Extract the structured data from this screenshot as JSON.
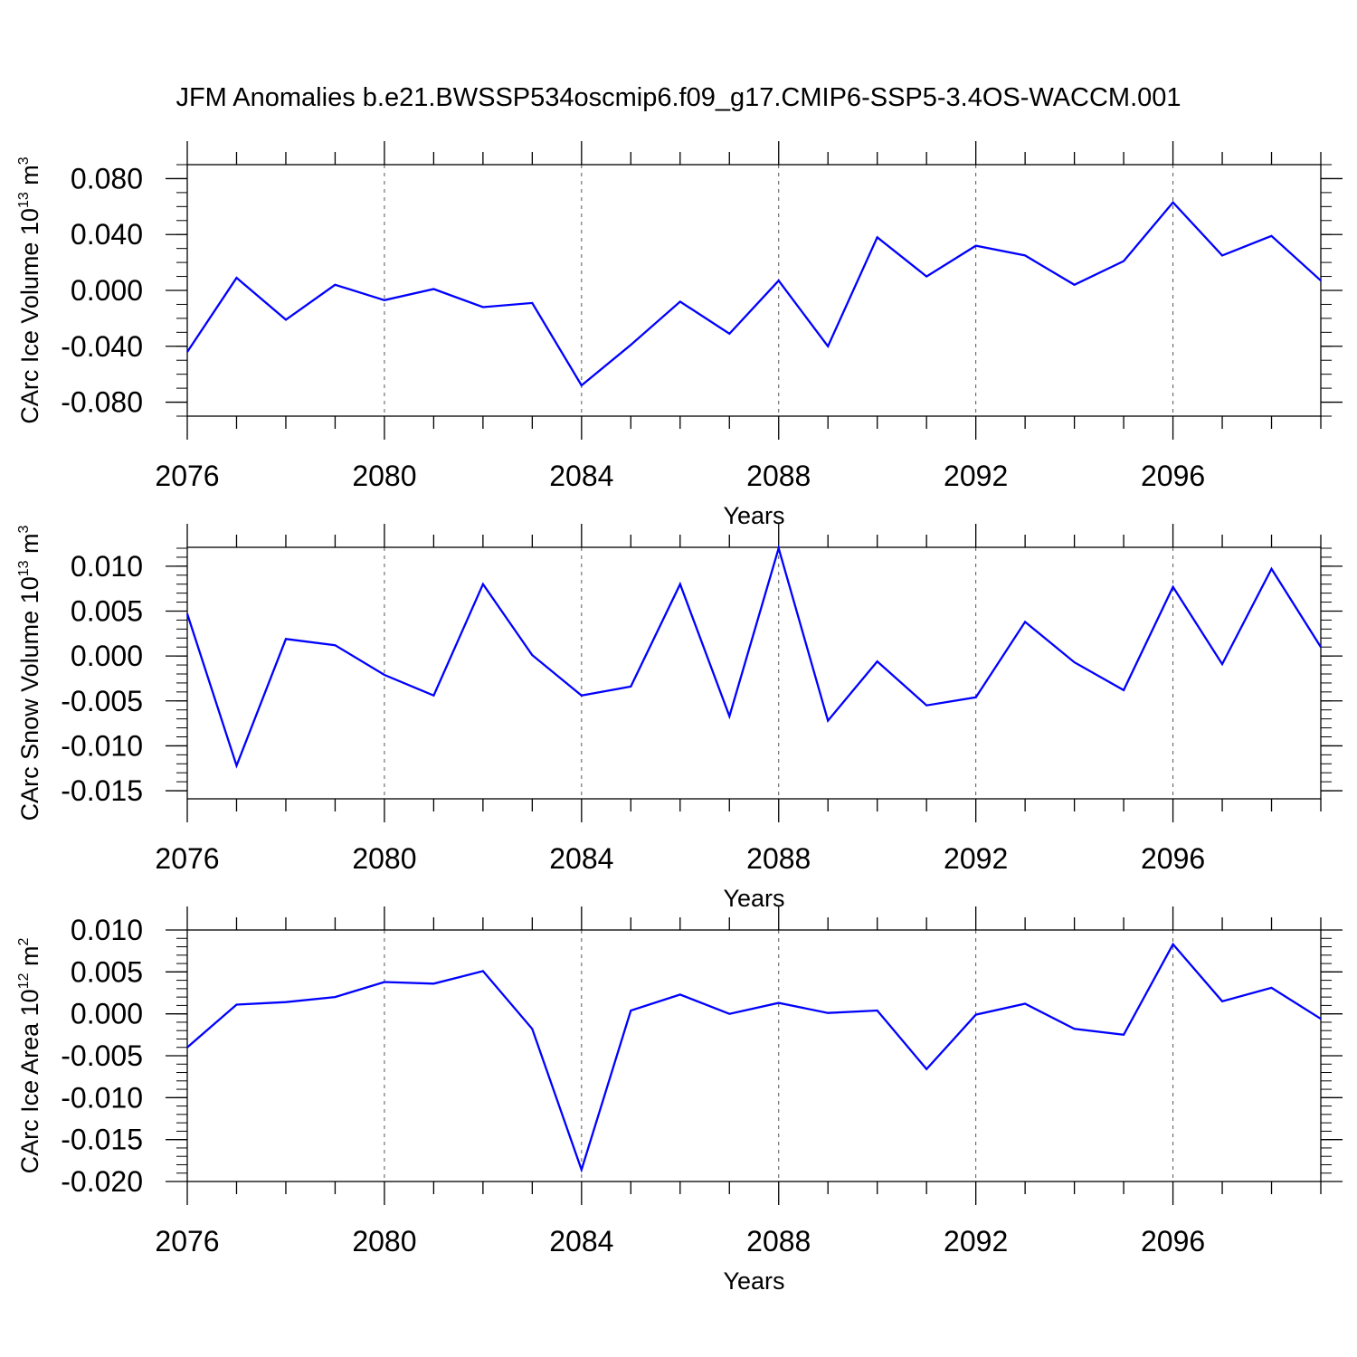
{
  "title": "JFM Anomalies b.e21.BWSSP534oscmip6.f09_g17.CMIP6-SSP5-3.4OS-WACCM.001",
  "chart_data": [
    {
      "type": "line",
      "ylabel_main": "CArc Ice Volume 10",
      "ylabel_exp": "13",
      "ylabel_unit": " m",
      "ylabel_unit_exp": "3",
      "xlabel": "Years",
      "xlim": [
        2076,
        2099
      ],
      "ylim": [
        -0.09,
        0.09
      ],
      "xticks": [
        2076,
        2080,
        2084,
        2088,
        2092,
        2096
      ],
      "yticks": [
        -0.08,
        -0.04,
        0.0,
        0.04,
        0.08
      ],
      "ytick_labels": [
        "-0.080",
        "-0.040",
        "0.000",
        "0.040",
        "0.080"
      ],
      "ytick_decimals": 3,
      "ytick_minor_step": 0.01,
      "color": "#0000ff",
      "x": [
        2076,
        2077,
        2078,
        2079,
        2080,
        2081,
        2082,
        2083,
        2084,
        2085,
        2086,
        2087,
        2088,
        2089,
        2090,
        2091,
        2092,
        2093,
        2094,
        2095,
        2096,
        2097,
        2098,
        2099
      ],
      "values": [
        -0.044,
        0.009,
        -0.021,
        0.004,
        -0.007,
        0.001,
        -0.012,
        -0.009,
        -0.068,
        -0.039,
        -0.008,
        -0.031,
        0.007,
        -0.04,
        0.038,
        0.01,
        0.032,
        0.025,
        0.004,
        0.021,
        0.063,
        0.025,
        0.039,
        0.007
      ]
    },
    {
      "type": "line",
      "ylabel_main": "CArc Snow Volume 10",
      "ylabel_exp": "13",
      "ylabel_unit": " m",
      "ylabel_unit_exp": "3",
      "xlabel": "Years",
      "xlim": [
        2076,
        2099
      ],
      "ylim": [
        -0.0159,
        0.0121
      ],
      "xticks": [
        2076,
        2080,
        2084,
        2088,
        2092,
        2096
      ],
      "yticks": [
        -0.015,
        -0.01,
        -0.005,
        0.0,
        0.005,
        0.01
      ],
      "ytick_labels": [
        "-0.015",
        "-0.010",
        "-0.005",
        "0.000",
        "0.005",
        "0.010"
      ],
      "ytick_decimals": 3,
      "ytick_minor_step": 0.001,
      "color": "#0000ff",
      "x": [
        2076,
        2077,
        2078,
        2079,
        2080,
        2081,
        2082,
        2083,
        2084,
        2085,
        2086,
        2087,
        2088,
        2089,
        2090,
        2091,
        2092,
        2093,
        2094,
        2095,
        2096,
        2097,
        2098,
        2099
      ],
      "values": [
        0.0047,
        -0.0122,
        0.0019,
        0.0012,
        -0.0021,
        -0.0044,
        0.008,
        0.0001,
        -0.0044,
        -0.0034,
        0.008,
        -0.0067,
        0.012,
        -0.0072,
        -0.0006,
        -0.0055,
        -0.0046,
        0.0038,
        -0.0007,
        -0.0038,
        0.0077,
        -0.0009,
        0.0097,
        0.001
      ]
    },
    {
      "type": "line",
      "ylabel_main": "CArc Ice Area 10",
      "ylabel_exp": "12",
      "ylabel_unit": " m",
      "ylabel_unit_exp": "2",
      "xlabel": "Years",
      "xlim": [
        2076,
        2099
      ],
      "ylim": [
        -0.02,
        0.01
      ],
      "xticks": [
        2076,
        2080,
        2084,
        2088,
        2092,
        2096
      ],
      "yticks": [
        -0.02,
        -0.015,
        -0.01,
        -0.005,
        0.0,
        0.005,
        0.01
      ],
      "ytick_labels": [
        "-0.020",
        "-0.015",
        "-0.010",
        "-0.005",
        "0.000",
        "0.005",
        "0.010"
      ],
      "ytick_decimals": 3,
      "ytick_minor_step": 0.001,
      "color": "#0000ff",
      "x": [
        2076,
        2077,
        2078,
        2079,
        2080,
        2081,
        2082,
        2083,
        2084,
        2085,
        2086,
        2087,
        2088,
        2089,
        2090,
        2091,
        2092,
        2093,
        2094,
        2095,
        2096,
        2097,
        2098,
        2099
      ],
      "values": [
        -0.004,
        0.0011,
        0.0014,
        0.002,
        0.0038,
        0.0036,
        0.0051,
        -0.0018,
        -0.0186,
        0.0004,
        0.0023,
        0.0,
        0.0013,
        0.0001,
        0.0004,
        -0.0066,
        -0.0001,
        0.0012,
        -0.0018,
        -0.0025,
        0.0083,
        0.0015,
        0.0031,
        -0.0006
      ]
    }
  ]
}
